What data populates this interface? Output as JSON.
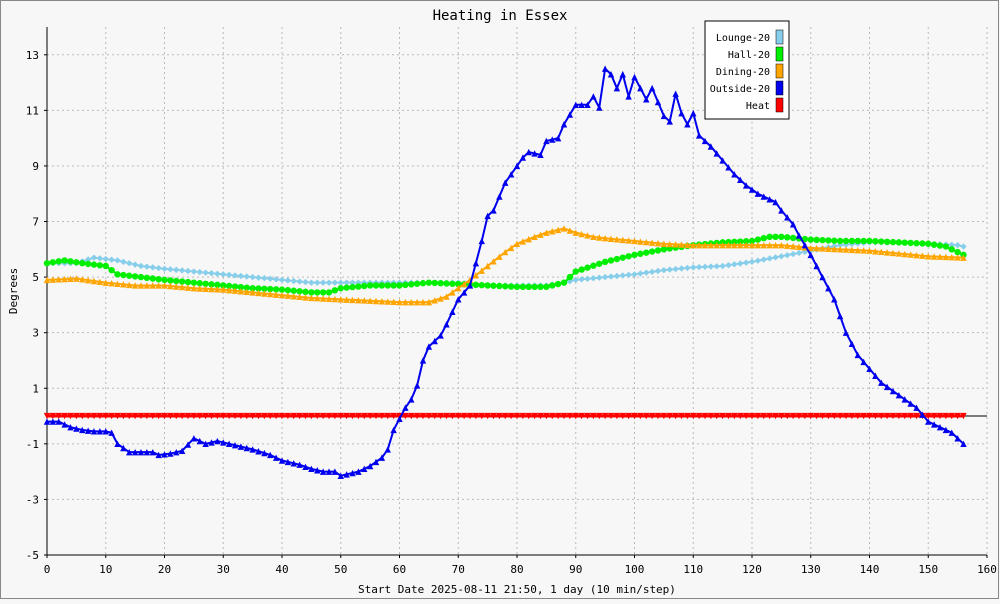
{
  "chart_data": {
    "type": "line",
    "title": "Heating in Essex",
    "xlabel": "Start Date 2025-08-11 21:50, 1 day (10 min/step)",
    "ylabel": "Degrees",
    "xlim": [
      0,
      160
    ],
    "ylim": [
      -5,
      14
    ],
    "x_ticks": [
      0,
      10,
      20,
      30,
      40,
      50,
      60,
      70,
      80,
      90,
      100,
      110,
      120,
      130,
      140,
      150,
      160
    ],
    "y_ticks": [
      -5,
      -3,
      -1,
      1,
      3,
      5,
      7,
      9,
      11,
      13
    ],
    "grid": true,
    "legend_position": "top-right",
    "series": [
      {
        "name": "Lounge-20",
        "color": "#87ceeb",
        "marker": "diamond",
        "points": [
          [
            0,
            5.5
          ],
          [
            5,
            5.5
          ],
          [
            8,
            5.7
          ],
          [
            12,
            5.6
          ],
          [
            16,
            5.4
          ],
          [
            20,
            5.3
          ],
          [
            25,
            5.2
          ],
          [
            30,
            5.1
          ],
          [
            35,
            5.0
          ],
          [
            40,
            4.9
          ],
          [
            45,
            4.8
          ],
          [
            50,
            4.8
          ],
          [
            55,
            4.8
          ],
          [
            60,
            4.8
          ],
          [
            65,
            4.8
          ],
          [
            70,
            4.8
          ],
          [
            75,
            4.7
          ],
          [
            80,
            4.7
          ],
          [
            85,
            4.7
          ],
          [
            88,
            4.8
          ],
          [
            90,
            4.9
          ],
          [
            95,
            5.0
          ],
          [
            100,
            5.1
          ],
          [
            105,
            5.25
          ],
          [
            110,
            5.35
          ],
          [
            115,
            5.4
          ],
          [
            120,
            5.55
          ],
          [
            125,
            5.75
          ],
          [
            130,
            5.95
          ],
          [
            135,
            6.15
          ],
          [
            140,
            6.25
          ],
          [
            145,
            6.25
          ],
          [
            150,
            6.2
          ],
          [
            155,
            6.15
          ],
          [
            156,
            6.1
          ]
        ]
      },
      {
        "name": "Hall-20",
        "color": "#00ee00",
        "marker": "circle",
        "points": [
          [
            0,
            5.5
          ],
          [
            3,
            5.6
          ],
          [
            6,
            5.5
          ],
          [
            10,
            5.4
          ],
          [
            12,
            5.1
          ],
          [
            16,
            5.0
          ],
          [
            20,
            4.9
          ],
          [
            25,
            4.8
          ],
          [
            30,
            4.7
          ],
          [
            35,
            4.6
          ],
          [
            40,
            4.55
          ],
          [
            45,
            4.45
          ],
          [
            48,
            4.45
          ],
          [
            50,
            4.6
          ],
          [
            55,
            4.7
          ],
          [
            60,
            4.7
          ],
          [
            65,
            4.8
          ],
          [
            70,
            4.75
          ],
          [
            75,
            4.7
          ],
          [
            80,
            4.65
          ],
          [
            85,
            4.65
          ],
          [
            88,
            4.8
          ],
          [
            90,
            5.2
          ],
          [
            95,
            5.55
          ],
          [
            100,
            5.8
          ],
          [
            105,
            6.0
          ],
          [
            110,
            6.15
          ],
          [
            115,
            6.25
          ],
          [
            120,
            6.3
          ],
          [
            123,
            6.45
          ],
          [
            125,
            6.45
          ],
          [
            130,
            6.35
          ],
          [
            135,
            6.3
          ],
          [
            140,
            6.3
          ],
          [
            145,
            6.25
          ],
          [
            150,
            6.2
          ],
          [
            153,
            6.1
          ],
          [
            156,
            5.8
          ]
        ]
      },
      {
        "name": "Dining-20",
        "color": "#ffa500",
        "marker": "triangle-up",
        "points": [
          [
            0,
            4.9
          ],
          [
            5,
            4.95
          ],
          [
            10,
            4.8
          ],
          [
            15,
            4.7
          ],
          [
            20,
            4.7
          ],
          [
            25,
            4.6
          ],
          [
            30,
            4.55
          ],
          [
            35,
            4.45
          ],
          [
            40,
            4.35
          ],
          [
            45,
            4.25
          ],
          [
            50,
            4.2
          ],
          [
            55,
            4.15
          ],
          [
            60,
            4.1
          ],
          [
            65,
            4.1
          ],
          [
            68,
            4.3
          ],
          [
            70,
            4.6
          ],
          [
            72,
            4.9
          ],
          [
            75,
            5.4
          ],
          [
            78,
            5.9
          ],
          [
            80,
            6.2
          ],
          [
            83,
            6.45
          ],
          [
            85,
            6.6
          ],
          [
            88,
            6.75
          ],
          [
            90,
            6.6
          ],
          [
            93,
            6.45
          ],
          [
            95,
            6.4
          ],
          [
            100,
            6.3
          ],
          [
            105,
            6.2
          ],
          [
            110,
            6.15
          ],
          [
            115,
            6.15
          ],
          [
            120,
            6.15
          ],
          [
            125,
            6.15
          ],
          [
            130,
            6.05
          ],
          [
            135,
            6.0
          ],
          [
            140,
            5.95
          ],
          [
            145,
            5.85
          ],
          [
            150,
            5.75
          ],
          [
            156,
            5.7
          ]
        ]
      },
      {
        "name": "Outside-20",
        "color": "#0000ee",
        "marker": "triangle-up",
        "points": [
          [
            0,
            -0.2
          ],
          [
            2,
            -0.2
          ],
          [
            4,
            -0.4
          ],
          [
            6,
            -0.5
          ],
          [
            8,
            -0.55
          ],
          [
            10,
            -0.55
          ],
          [
            11,
            -0.6
          ],
          [
            12,
            -1.0
          ],
          [
            14,
            -1.3
          ],
          [
            18,
            -1.3
          ],
          [
            19,
            -1.4
          ],
          [
            21,
            -1.35
          ],
          [
            23,
            -1.25
          ],
          [
            25,
            -0.8
          ],
          [
            27,
            -1.0
          ],
          [
            29,
            -0.9
          ],
          [
            31,
            -1.0
          ],
          [
            35,
            -1.2
          ],
          [
            38,
            -1.4
          ],
          [
            40,
            -1.6
          ],
          [
            43,
            -1.75
          ],
          [
            45,
            -1.9
          ],
          [
            47,
            -2.0
          ],
          [
            49,
            -2.0
          ],
          [
            50,
            -2.15
          ],
          [
            51,
            -2.1
          ],
          [
            53,
            -2.0
          ],
          [
            55,
            -1.8
          ],
          [
            57,
            -1.5
          ],
          [
            58,
            -1.2
          ],
          [
            59,
            -0.5
          ],
          [
            61,
            0.3
          ],
          [
            62,
            0.6
          ],
          [
            63,
            1.1
          ],
          [
            64,
            2.0
          ],
          [
            65,
            2.5
          ],
          [
            67,
            2.9
          ],
          [
            68,
            3.3
          ],
          [
            70,
            4.2
          ],
          [
            72,
            4.7
          ],
          [
            74,
            6.3
          ],
          [
            75,
            7.2
          ],
          [
            76,
            7.4
          ],
          [
            78,
            8.4
          ],
          [
            80,
            9.0
          ],
          [
            81,
            9.3
          ],
          [
            82,
            9.5
          ],
          [
            84,
            9.4
          ],
          [
            85,
            9.9
          ],
          [
            87,
            10.0
          ],
          [
            88,
            10.5
          ],
          [
            90,
            11.2
          ],
          [
            92,
            11.2
          ],
          [
            93,
            11.5
          ],
          [
            94,
            11.1
          ],
          [
            95,
            12.5
          ],
          [
            96,
            12.3
          ],
          [
            97,
            11.8
          ],
          [
            98,
            12.3
          ],
          [
            99,
            11.5
          ],
          [
            100,
            12.2
          ],
          [
            101,
            11.8
          ],
          [
            102,
            11.4
          ],
          [
            103,
            11.8
          ],
          [
            105,
            10.8
          ],
          [
            106,
            10.6
          ],
          [
            107,
            11.6
          ],
          [
            108,
            10.9
          ],
          [
            109,
            10.5
          ],
          [
            110,
            10.9
          ],
          [
            111,
            10.1
          ],
          [
            113,
            9.7
          ],
          [
            115,
            9.2
          ],
          [
            117,
            8.7
          ],
          [
            119,
            8.3
          ],
          [
            121,
            8.0
          ],
          [
            124,
            7.7
          ],
          [
            125,
            7.4
          ],
          [
            127,
            6.9
          ],
          [
            128,
            6.5
          ],
          [
            130,
            5.8
          ],
          [
            132,
            5.0
          ],
          [
            134,
            4.2
          ],
          [
            136,
            3.0
          ],
          [
            138,
            2.2
          ],
          [
            140,
            1.7
          ],
          [
            142,
            1.2
          ],
          [
            144,
            0.9
          ],
          [
            146,
            0.6
          ],
          [
            148,
            0.3
          ],
          [
            150,
            -0.2
          ],
          [
            152,
            -0.4
          ],
          [
            154,
            -0.6
          ],
          [
            156,
            -1.0
          ]
        ]
      },
      {
        "name": "Heat",
        "color": "#ff0000",
        "marker": "triangle-down",
        "points": [
          [
            0,
            0
          ],
          [
            156,
            0
          ]
        ]
      }
    ]
  }
}
